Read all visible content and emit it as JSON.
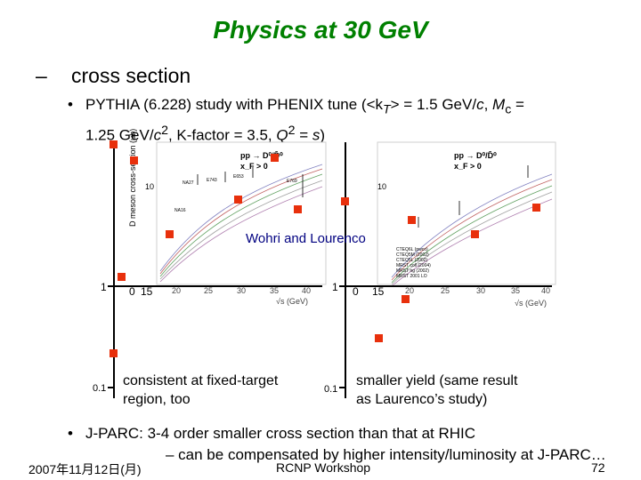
{
  "slide": {
    "title": "Physics at 30 GeV",
    "level1": {
      "dash": "–",
      "text": "cross section"
    },
    "bullet1": {
      "marker": "•",
      "text_parts": {
        "p1": "PYTHIA (6.228) study with PHENIX tune (<k",
        "p1_sub": "T",
        "p2": "> = 1.5 GeV/",
        "p2_it": "c",
        "p3": ", ",
        "p3_it": "M",
        "p3_sub": "c",
        "p4": " =",
        "p5": "1.25 GeV/",
        "p5_it": "c",
        "p5_sup": "2",
        "p6": ", K-factor = 3.5, ",
        "p6_it": "Q",
        "p6_sup": "2",
        "p7": " = ",
        "p7_it": "s",
        "p7_end": ")"
      }
    },
    "figure": {
      "left_plot": {
        "header_line1": "pp → D⁰/D̄⁰",
        "header_line2": "x_F > 0",
        "ylabel": "D meson cross-section (μb)",
        "tick_10": "10",
        "tick_1": "1",
        "xticks": [
          "15",
          "20",
          "25",
          "30",
          "35",
          "40"
        ],
        "xtick_extra": "0",
        "xlabel": "√s (GeV)",
        "tick_01": "0.1",
        "labels": [
          "NA27",
          "E743",
          "E653",
          "NA16",
          "E769"
        ]
      },
      "right_plot": {
        "header_line1": "pp → D⁰/D̄⁰",
        "header_line2": "x_F > 0",
        "tick_10": "10",
        "tick_1": "1",
        "xticks": [
          "15",
          "20",
          "25",
          "30",
          "35",
          "40"
        ],
        "xtick_extra": "0",
        "xlabel": "√s (GeV)",
        "tick_01": "0.1",
        "legend": [
          "CTEQ6L (pwco)",
          "CTEQ5M (2002)",
          "CTEQ5L (2002)",
          "MRST coll (2004)",
          "MRST ng (2002)",
          "MRST 2001 LO"
        ]
      },
      "overlay_label": "Wohri and Lourenco",
      "note_left_line1": "consistent at fixed-target",
      "note_left_line2": "region, too",
      "note_right_line1": "smaller yield (same result",
      "note_right_line2": "as Laurenco’s study)"
    },
    "bullet2": {
      "marker": "•",
      "line1": "J-PARC: 3-4 order smaller cross section than that at RHIC",
      "line2": "– can be compensated by higher intensity/luminosity at J-PARC…"
    },
    "footer": {
      "date": "2007年11月12日(月)",
      "event": "RCNP Workshop",
      "page": "72"
    },
    "colors": {
      "title": "#008000",
      "marker": "#e8300c"
    }
  }
}
